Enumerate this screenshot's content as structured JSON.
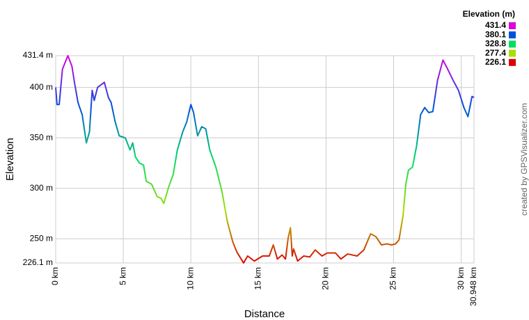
{
  "chart_data": {
    "type": "line",
    "x_label": "Distance",
    "y_label": "Elevation",
    "credit": "created by GPSVisualizer.com",
    "legend_title": "Elevation (m)",
    "color_scale": [
      {
        "value": 431.4,
        "color": "#dd00dd"
      },
      {
        "value": 380.1,
        "color": "#0050dd"
      },
      {
        "value": 328.8,
        "color": "#00dd66"
      },
      {
        "value": 277.4,
        "color": "#aadd00"
      },
      {
        "value": 226.1,
        "color": "#dd0000"
      }
    ],
    "xlim": [
      0,
      30.948
    ],
    "ylim": [
      226.1,
      431.4
    ],
    "xticks": [
      {
        "value": 0,
        "label": "0 km"
      },
      {
        "value": 5,
        "label": "5 km"
      },
      {
        "value": 10,
        "label": "10 km"
      },
      {
        "value": 15,
        "label": "15 km"
      },
      {
        "value": 20,
        "label": "20 km"
      },
      {
        "value": 25,
        "label": "25 km"
      },
      {
        "value": 30,
        "label": "30 km"
      },
      {
        "value": 30.948,
        "label": "30.948 km"
      }
    ],
    "yticks": [
      {
        "value": 226.1,
        "label": "226.1 m"
      },
      {
        "value": 250,
        "label": "250 m"
      },
      {
        "value": 300,
        "label": "300 m"
      },
      {
        "value": 350,
        "label": "350 m"
      },
      {
        "value": 400,
        "label": "400 m"
      },
      {
        "value": 431.4,
        "label": "431.4 m"
      }
    ],
    "grid": true,
    "x": [
      0,
      0.1,
      0.26,
      0.5,
      0.9,
      1.2,
      1.4,
      1.65,
      1.96,
      2.27,
      2.5,
      2.7,
      2.85,
      3.1,
      3.6,
      3.9,
      4.1,
      4.4,
      4.7,
      5.15,
      5.5,
      5.7,
      5.9,
      6.2,
      6.5,
      6.7,
      7.1,
      7.5,
      7.8,
      8.0,
      8.35,
      8.7,
      9.0,
      9.4,
      9.7,
      10.0,
      10.2,
      10.5,
      10.8,
      11.1,
      11.4,
      11.85,
      12.3,
      12.7,
      13.1,
      13.4,
      13.9,
      14.2,
      14.7,
      15.3,
      15.8,
      16.1,
      16.4,
      16.75,
      17.0,
      17.2,
      17.37,
      17.5,
      17.6,
      17.9,
      18.35,
      18.8,
      19.2,
      19.7,
      20.1,
      20.7,
      21.1,
      21.6,
      22.3,
      22.8,
      23.3,
      23.7,
      24.1,
      24.5,
      24.85,
      25.15,
      25.4,
      25.7,
      25.9,
      26.1,
      26.4,
      26.7,
      27.0,
      27.3,
      27.6,
      27.9,
      28.25,
      28.65,
      29.0,
      29.4,
      29.8,
      30.2,
      30.5,
      30.8,
      30.948
    ],
    "values": [
      400,
      383,
      383,
      418,
      431.4,
      421,
      404,
      385,
      373,
      345,
      356,
      397,
      387,
      400,
      405,
      390,
      385,
      366,
      352,
      350,
      338,
      345,
      331,
      325,
      323,
      307,
      304,
      292,
      290,
      285,
      301,
      314,
      338,
      356,
      366,
      383,
      375,
      352,
      361,
      359,
      338,
      321,
      297,
      267,
      247,
      237,
      226.1,
      233,
      228,
      233,
      233,
      244,
      230,
      234,
      230,
      251,
      261,
      233,
      240,
      228,
      233,
      232,
      239,
      233,
      236,
      236,
      230,
      235,
      233,
      239,
      255,
      252,
      244,
      245,
      244,
      245,
      249,
      273,
      304,
      318,
      321,
      342,
      373,
      380,
      375,
      376,
      407,
      427,
      418,
      407,
      397,
      380,
      371,
      391,
      390
    ]
  }
}
